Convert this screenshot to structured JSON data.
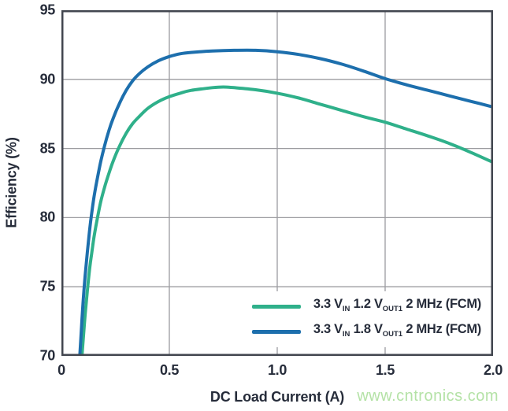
{
  "watermark": {
    "text": "www.cntronics.com",
    "color": "#b4e2a6"
  },
  "colors": {
    "background": "#ffffff",
    "text": "#262c3a",
    "frame": "#42464f",
    "grid": "#9c9ca0"
  },
  "chart_data": {
    "type": "line",
    "title": "",
    "xlabel": "DC Load Current (A)",
    "ylabel": "Efficiency (%)",
    "xlim": [
      0,
      2
    ],
    "ylim": [
      70,
      95
    ],
    "grid": true,
    "legend_position": "lower right",
    "xticks": [
      {
        "v": 0,
        "label": "0"
      },
      {
        "v": 0.5,
        "label": "0.5"
      },
      {
        "v": 1.0,
        "label": "1.0"
      },
      {
        "v": 1.5,
        "label": "1.5"
      },
      {
        "v": 2.0,
        "label": "2.0"
      }
    ],
    "yticks": [
      {
        "v": 70,
        "label": "70"
      },
      {
        "v": 75,
        "label": "75"
      },
      {
        "v": 80,
        "label": "80"
      },
      {
        "v": 85,
        "label": "85"
      },
      {
        "v": 90,
        "label": "90"
      },
      {
        "v": 95,
        "label": "95"
      }
    ],
    "series": [
      {
        "name": "3.3 VIN 1.2 VOUT1 2 MHz (FCM)",
        "color": "#2fb08a",
        "legend_parts": [
          {
            "text": "3.3 V"
          },
          {
            "text": "IN",
            "sub": true
          },
          {
            "text": " 1.2 V"
          },
          {
            "text": "OUT1",
            "sub": true
          },
          {
            "text": " 2 MHz (FCM)"
          }
        ],
        "points": [
          [
            0.095,
            70.0
          ],
          [
            0.1,
            71.0
          ],
          [
            0.11,
            73.0
          ],
          [
            0.12,
            74.7
          ],
          [
            0.13,
            76.2
          ],
          [
            0.14,
            77.4
          ],
          [
            0.15,
            78.5
          ],
          [
            0.16,
            79.4
          ],
          [
            0.18,
            81.0
          ],
          [
            0.2,
            82.2
          ],
          [
            0.22,
            83.2
          ],
          [
            0.24,
            84.1
          ],
          [
            0.27,
            85.2
          ],
          [
            0.3,
            86.1
          ],
          [
            0.33,
            86.8
          ],
          [
            0.36,
            87.3
          ],
          [
            0.4,
            87.9
          ],
          [
            0.45,
            88.4
          ],
          [
            0.5,
            88.75
          ],
          [
            0.55,
            89.0
          ],
          [
            0.6,
            89.2
          ],
          [
            0.7,
            89.4
          ],
          [
            0.75,
            89.45
          ],
          [
            0.8,
            89.4
          ],
          [
            0.9,
            89.25
          ],
          [
            1.0,
            89.0
          ],
          [
            1.1,
            88.65
          ],
          [
            1.2,
            88.2
          ],
          [
            1.3,
            87.75
          ],
          [
            1.4,
            87.3
          ],
          [
            1.5,
            86.9
          ],
          [
            1.6,
            86.4
          ],
          [
            1.7,
            85.9
          ],
          [
            1.8,
            85.35
          ],
          [
            1.9,
            84.7
          ],
          [
            2.0,
            84.0
          ]
        ]
      },
      {
        "name": "3.3 VIN 1.8 VOUT1 2 MHz (FCM)",
        "color": "#1d6fad",
        "legend_parts": [
          {
            "text": "3.3 V"
          },
          {
            "text": "IN",
            "sub": true
          },
          {
            "text": " 1.8 V"
          },
          {
            "text": "OUT1",
            "sub": true
          },
          {
            "text": " 2 MHz (FCM)"
          }
        ],
        "points": [
          [
            0.085,
            70.0
          ],
          [
            0.09,
            71.3
          ],
          [
            0.1,
            73.8
          ],
          [
            0.11,
            75.8
          ],
          [
            0.12,
            77.5
          ],
          [
            0.13,
            79.0
          ],
          [
            0.14,
            80.3
          ],
          [
            0.15,
            81.4
          ],
          [
            0.16,
            82.3
          ],
          [
            0.18,
            83.9
          ],
          [
            0.2,
            85.2
          ],
          [
            0.22,
            86.3
          ],
          [
            0.24,
            87.2
          ],
          [
            0.27,
            88.3
          ],
          [
            0.3,
            89.2
          ],
          [
            0.33,
            89.9
          ],
          [
            0.36,
            90.4
          ],
          [
            0.4,
            90.9
          ],
          [
            0.45,
            91.35
          ],
          [
            0.5,
            91.65
          ],
          [
            0.55,
            91.85
          ],
          [
            0.6,
            91.95
          ],
          [
            0.7,
            92.05
          ],
          [
            0.8,
            92.1
          ],
          [
            0.9,
            92.1
          ],
          [
            1.0,
            92.0
          ],
          [
            1.1,
            91.8
          ],
          [
            1.2,
            91.5
          ],
          [
            1.3,
            91.1
          ],
          [
            1.4,
            90.6
          ],
          [
            1.5,
            90.05
          ],
          [
            1.6,
            89.6
          ],
          [
            1.7,
            89.2
          ],
          [
            1.8,
            88.8
          ],
          [
            1.9,
            88.4
          ],
          [
            2.0,
            88.0
          ]
        ]
      }
    ]
  }
}
